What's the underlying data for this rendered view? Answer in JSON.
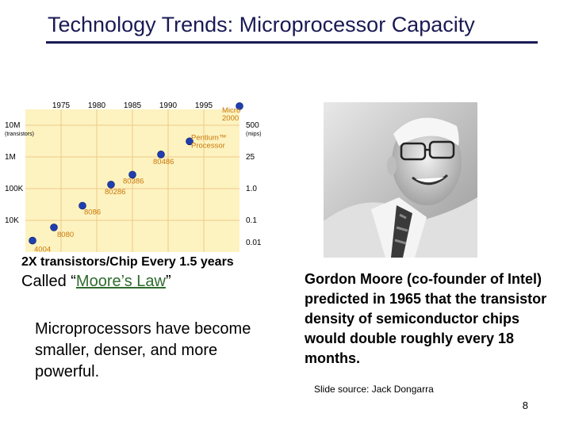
{
  "title": "Technology Trends: Microprocessor Capacity",
  "chart_data": {
    "type": "scatter",
    "title": "",
    "x_ticks": [
      "1975",
      "1980",
      "1985",
      "1990",
      "1995"
    ],
    "y_left_ticks": [
      "10M",
      "1M",
      "100K",
      "10K"
    ],
    "y_left_unit": "(transistors)",
    "y_right_ticks": [
      "500",
      "25",
      "1.0",
      "0.1",
      "0.01"
    ],
    "y_right_unit": "(mips)",
    "xlim": [
      1970,
      2000
    ],
    "ylim_log10_transistors": [
      3,
      7.5
    ],
    "points": [
      {
        "label": "4004",
        "x": 1971,
        "y": 2300
      },
      {
        "label": "8080",
        "x": 1974,
        "y": 6000
      },
      {
        "label": "8086",
        "x": 1978,
        "y": 29000
      },
      {
        "label": "80286",
        "x": 1982,
        "y": 134000
      },
      {
        "label": "80386",
        "x": 1985,
        "y": 275000
      },
      {
        "label": "80486",
        "x": 1989,
        "y": 1200000
      },
      {
        "label": "Pentium™ Processor",
        "x": 1993,
        "y": 3100000
      },
      {
        "label": "Micro 2000",
        "x": 2000,
        "y": 40000000
      }
    ],
    "colors": {
      "fill": "#fdf3c0",
      "grid": "#f0c88a",
      "point": "#1f3fb0",
      "label": "#c8780a"
    }
  },
  "photo": {
    "icon": "portrait-gordon-moore"
  },
  "law_caption": "2X transistors/Chip Every 1.5 years",
  "called_prefix": "Called “",
  "moore_link": "Moore’s Law",
  "called_suffix": "”",
  "left_body": "Microprocessors have become smaller, denser, and more powerful.",
  "right_body": "Gordon Moore (co-founder of Intel) predicted in 1965 that the transistor density of semiconductor chips would double roughly every 18 months.",
  "source": "Slide source: Jack Dongarra",
  "page_number": "8"
}
